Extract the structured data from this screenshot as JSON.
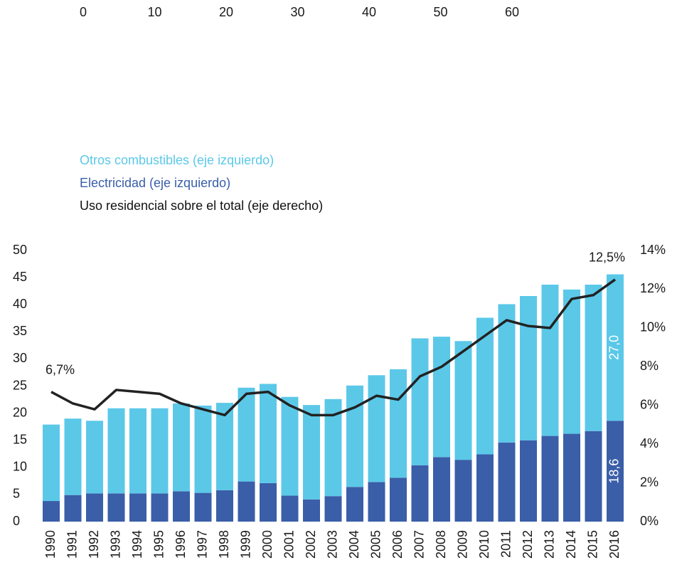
{
  "chart_data": {
    "type": "bar",
    "top_ticks": [
      0,
      10,
      20,
      30,
      40,
      50,
      60
    ],
    "categories": [
      "1990",
      "1991",
      "1992",
      "1993",
      "1994",
      "1995",
      "1996",
      "1997",
      "1998",
      "1999",
      "2000",
      "2001",
      "2002",
      "2003",
      "2004",
      "2005",
      "2006",
      "2007",
      "2008",
      "2009",
      "2010",
      "2011",
      "2012",
      "2013",
      "2014",
      "2015",
      "2016"
    ],
    "series": [
      {
        "name": "Otros combustibles (eje izquierdo)",
        "color": "#5bc8e8",
        "values": [
          14.1,
          14.1,
          13.4,
          15.7,
          15.7,
          15.7,
          16.2,
          16.1,
          16.1,
          17.3,
          18.3,
          18.2,
          17.4,
          17.9,
          18.7,
          19.7,
          20.0,
          23.4,
          22.2,
          21.9,
          25.2,
          25.5,
          26.6,
          27.9,
          26.6,
          27.0,
          27.0
        ],
        "value_labels": [
          null,
          null,
          null,
          null,
          null,
          null,
          null,
          null,
          null,
          null,
          null,
          null,
          null,
          null,
          null,
          null,
          null,
          null,
          null,
          null,
          null,
          null,
          null,
          null,
          null,
          null,
          "27,0"
        ]
      },
      {
        "name": "Electricidad (eje izquierdo)",
        "color": "#3a5ea8",
        "values": [
          3.8,
          4.9,
          5.2,
          5.2,
          5.2,
          5.2,
          5.6,
          5.3,
          5.8,
          7.4,
          7.1,
          4.8,
          4.1,
          4.7,
          6.4,
          7.3,
          8.1,
          10.4,
          11.9,
          11.4,
          12.4,
          14.6,
          15.0,
          15.8,
          16.2,
          16.7,
          18.6
        ],
        "value_labels": [
          null,
          null,
          null,
          null,
          null,
          null,
          null,
          null,
          null,
          null,
          null,
          null,
          null,
          null,
          null,
          null,
          null,
          null,
          null,
          null,
          null,
          null,
          null,
          null,
          null,
          null,
          "18,6"
        ]
      },
      {
        "name": "Uso residencial sobre el total (eje derecho)",
        "color": "#222222",
        "type": "line",
        "axis": "y2",
        "values": [
          6.7,
          6.1,
          5.8,
          6.8,
          6.7,
          6.6,
          6.1,
          5.8,
          5.5,
          6.6,
          6.7,
          6.0,
          5.5,
          5.5,
          5.9,
          6.5,
          6.3,
          7.5,
          8.0,
          8.8,
          9.6,
          10.4,
          10.1,
          10.0,
          11.5,
          11.7,
          12.5
        ],
        "value_labels": [
          "6,7%",
          null,
          null,
          null,
          null,
          null,
          null,
          null,
          null,
          null,
          null,
          null,
          null,
          null,
          null,
          null,
          null,
          null,
          null,
          null,
          null,
          null,
          null,
          null,
          null,
          null,
          "12,5%"
        ]
      }
    ],
    "stacked": true,
    "ylim": [
      0,
      50
    ],
    "yticks": [
      0,
      5,
      10,
      15,
      20,
      25,
      30,
      35,
      40,
      45,
      50
    ],
    "y2lim": [
      0,
      14
    ],
    "y2ticks": [
      {
        "value": 0,
        "label": "0%"
      },
      {
        "value": 2,
        "label": "2%"
      },
      {
        "value": 4,
        "label": "4%"
      },
      {
        "value": 6,
        "label": "6%"
      },
      {
        "value": 8,
        "label": "8%"
      },
      {
        "value": 10,
        "label": "10%"
      },
      {
        "value": 12,
        "label": "12%"
      },
      {
        "value": 14,
        "label": "14%"
      }
    ]
  }
}
